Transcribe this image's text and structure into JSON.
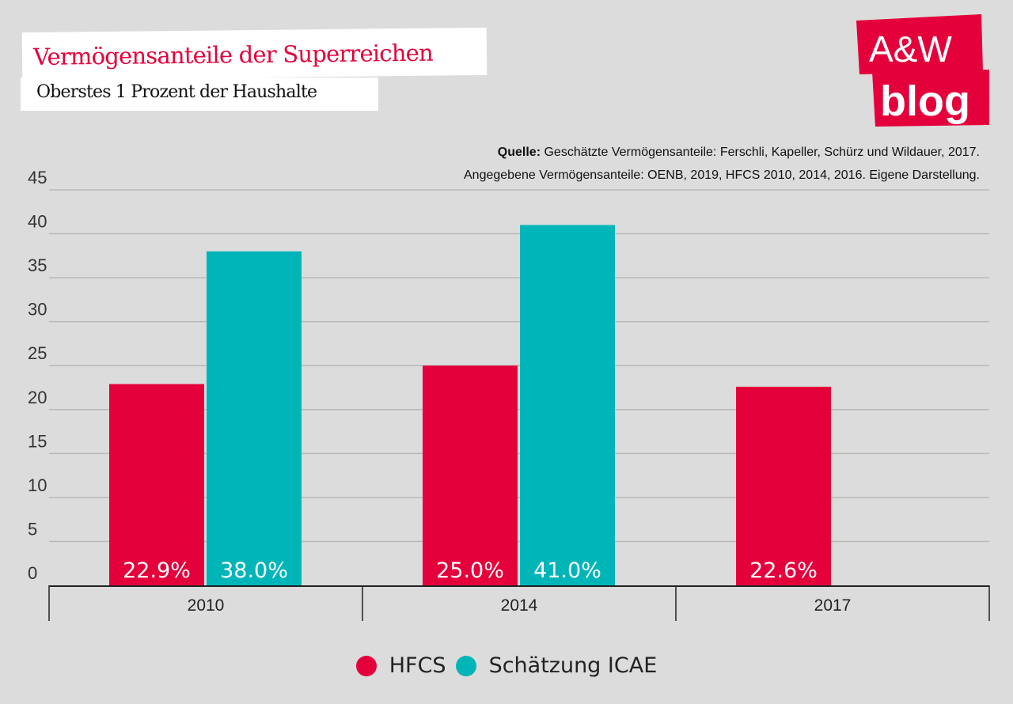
{
  "title": "Vermögensanteile der Superreichen",
  "subtitle": "Oberstes 1 Prozent der Haushalte",
  "source": {
    "label": "Quelle:",
    "line1": "Geschätzte Vermögensanteile: Ferschli, Kapeller, Schürz und Wildauer, 2017.",
    "line2": "Angegebene Vermögensanteile: OENB, 2019, HFCS 2010, 2014, 2016. Eigene Darstellung."
  },
  "logo": {
    "line1": "A&W",
    "line2": "blog",
    "color": "#e4003a"
  },
  "chart_data": {
    "type": "bar",
    "categories": [
      "2010",
      "2014",
      "2017"
    ],
    "series": [
      {
        "name": "HFCS",
        "color": "#e4003a",
        "values": [
          22.9,
          25.0,
          22.6
        ],
        "labels": [
          "22.9%",
          "25.0%",
          "22.6%"
        ]
      },
      {
        "name": "Schätzung ICAE",
        "color": "#00b5b8",
        "values": [
          38.0,
          41.0,
          null
        ],
        "labels": [
          "38.0%",
          "41.0%",
          ""
        ]
      }
    ],
    "yticks": [
      "0",
      "5",
      "10",
      "15",
      "20",
      "25",
      "30",
      "35",
      "40",
      "45"
    ],
    "ylim": [
      0,
      45
    ],
    "grid": true,
    "legend": "bottom"
  }
}
